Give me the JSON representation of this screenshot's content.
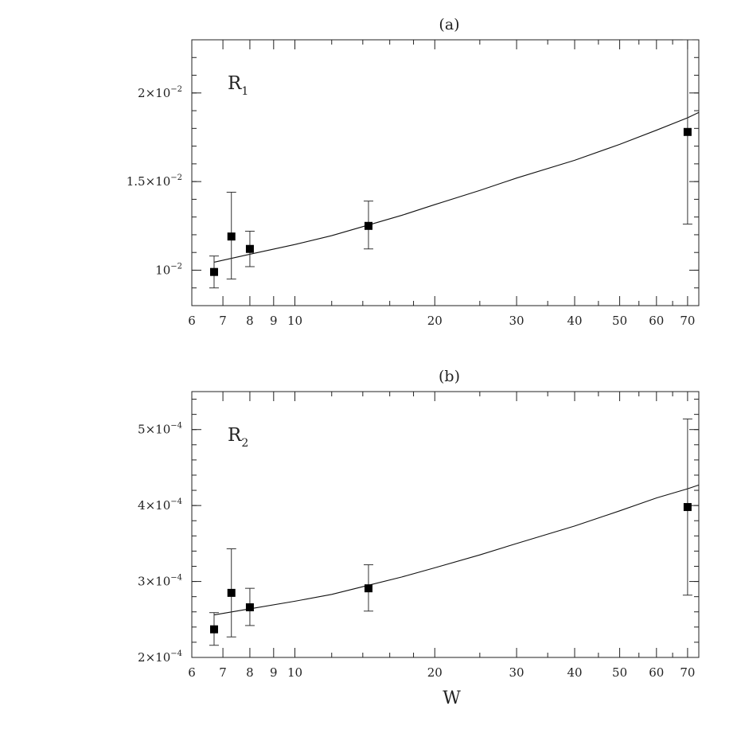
{
  "chart_data": [
    {
      "type": "scatter",
      "title": "(a)",
      "annotation": {
        "main": "R",
        "sub": "1"
      },
      "xlabel": "",
      "x_scale": "log",
      "y_scale": "linear",
      "xlim": [
        6,
        74
      ],
      "ylim": [
        0.008,
        0.023
      ],
      "x_ticks": [
        {
          "value": 6,
          "label": "6"
        },
        {
          "value": 7,
          "label": "7"
        },
        {
          "value": 8,
          "label": "8"
        },
        {
          "value": 9,
          "label": "9"
        },
        {
          "value": 10,
          "label": "10"
        },
        {
          "value": 20,
          "label": "20"
        },
        {
          "value": 30,
          "label": "30"
        },
        {
          "value": 40,
          "label": "40"
        },
        {
          "value": 50,
          "label": "50"
        },
        {
          "value": 60,
          "label": "60"
        },
        {
          "value": 70,
          "label": "70"
        }
      ],
      "y_ticks": [
        {
          "value": 0.01,
          "mantissa": "",
          "exponent": "−2"
        },
        {
          "value": 0.015,
          "mantissa": "1.5×",
          "exponent": "−2"
        },
        {
          "value": 0.02,
          "mantissa": "2×",
          "exponent": "−2"
        }
      ],
      "y_minor_step": 0.001,
      "grid": false,
      "series": [
        {
          "marker": "square",
          "points": [
            {
              "x": 6.7,
              "y": 0.0099,
              "err_low": 0.009,
              "err_high": 0.0108
            },
            {
              "x": 7.3,
              "y": 0.0119,
              "err_low": 0.0095,
              "err_high": 0.0144
            },
            {
              "x": 8.0,
              "y": 0.0112,
              "err_low": 0.0102,
              "err_high": 0.0122
            },
            {
              "x": 14.4,
              "y": 0.0125,
              "err_low": 0.0112,
              "err_high": 0.0139
            },
            {
              "x": 70.0,
              "y": 0.0178,
              "err_low": 0.0126,
              "err_high": 0.023
            }
          ]
        }
      ],
      "fit_curve": {
        "x": [
          6.7,
          8,
          10,
          12,
          14.4,
          17,
          20,
          25,
          30,
          40,
          50,
          60,
          70,
          74
        ],
        "y": [
          0.01045,
          0.0109,
          0.01145,
          0.01195,
          0.01255,
          0.0131,
          0.0137,
          0.0145,
          0.0152,
          0.0162,
          0.0171,
          0.0179,
          0.0186,
          0.0189
        ]
      }
    },
    {
      "type": "scatter",
      "title": "(b)",
      "annotation": {
        "main": "R",
        "sub": "2"
      },
      "xlabel": "W",
      "x_scale": "log",
      "y_scale": "linear",
      "xlim": [
        6,
        74
      ],
      "ylim": [
        0.0002,
        0.00055
      ],
      "x_ticks": [
        {
          "value": 6,
          "label": "6"
        },
        {
          "value": 7,
          "label": "7"
        },
        {
          "value": 8,
          "label": "8"
        },
        {
          "value": 9,
          "label": "9"
        },
        {
          "value": 10,
          "label": "10"
        },
        {
          "value": 20,
          "label": "20"
        },
        {
          "value": 30,
          "label": "30"
        },
        {
          "value": 40,
          "label": "40"
        },
        {
          "value": 50,
          "label": "50"
        },
        {
          "value": 60,
          "label": "60"
        },
        {
          "value": 70,
          "label": "70"
        }
      ],
      "y_ticks": [
        {
          "value": 0.0002,
          "mantissa": "2×",
          "exponent": "−4"
        },
        {
          "value": 0.0003,
          "mantissa": "3×",
          "exponent": "−4"
        },
        {
          "value": 0.0004,
          "mantissa": "4×",
          "exponent": "−4"
        },
        {
          "value": 0.0005,
          "mantissa": "5×",
          "exponent": "−4"
        }
      ],
      "y_minor_step": 2e-05,
      "grid": false,
      "series": [
        {
          "marker": "square",
          "points": [
            {
              "x": 6.7,
              "y": 0.000237,
              "err_low": 0.000216,
              "err_high": 0.000259
            },
            {
              "x": 7.3,
              "y": 0.000285,
              "err_low": 0.000227,
              "err_high": 0.000343
            },
            {
              "x": 8.0,
              "y": 0.000266,
              "err_low": 0.000242,
              "err_high": 0.000291
            },
            {
              "x": 14.4,
              "y": 0.000291,
              "err_low": 0.000261,
              "err_high": 0.000322
            },
            {
              "x": 70.0,
              "y": 0.000398,
              "err_low": 0.000282,
              "err_high": 0.000514
            }
          ]
        }
      ],
      "fit_curve": {
        "x": [
          6.7,
          8,
          10,
          12,
          14.4,
          17,
          20,
          25,
          30,
          40,
          50,
          60,
          70,
          74
        ],
        "y": [
          0.000256,
          0.000264,
          0.000274,
          0.000283,
          0.000295,
          0.000306,
          0.000318,
          0.000335,
          0.00035,
          0.000373,
          0.000393,
          0.00041,
          0.000422,
          0.000427
        ]
      }
    }
  ]
}
